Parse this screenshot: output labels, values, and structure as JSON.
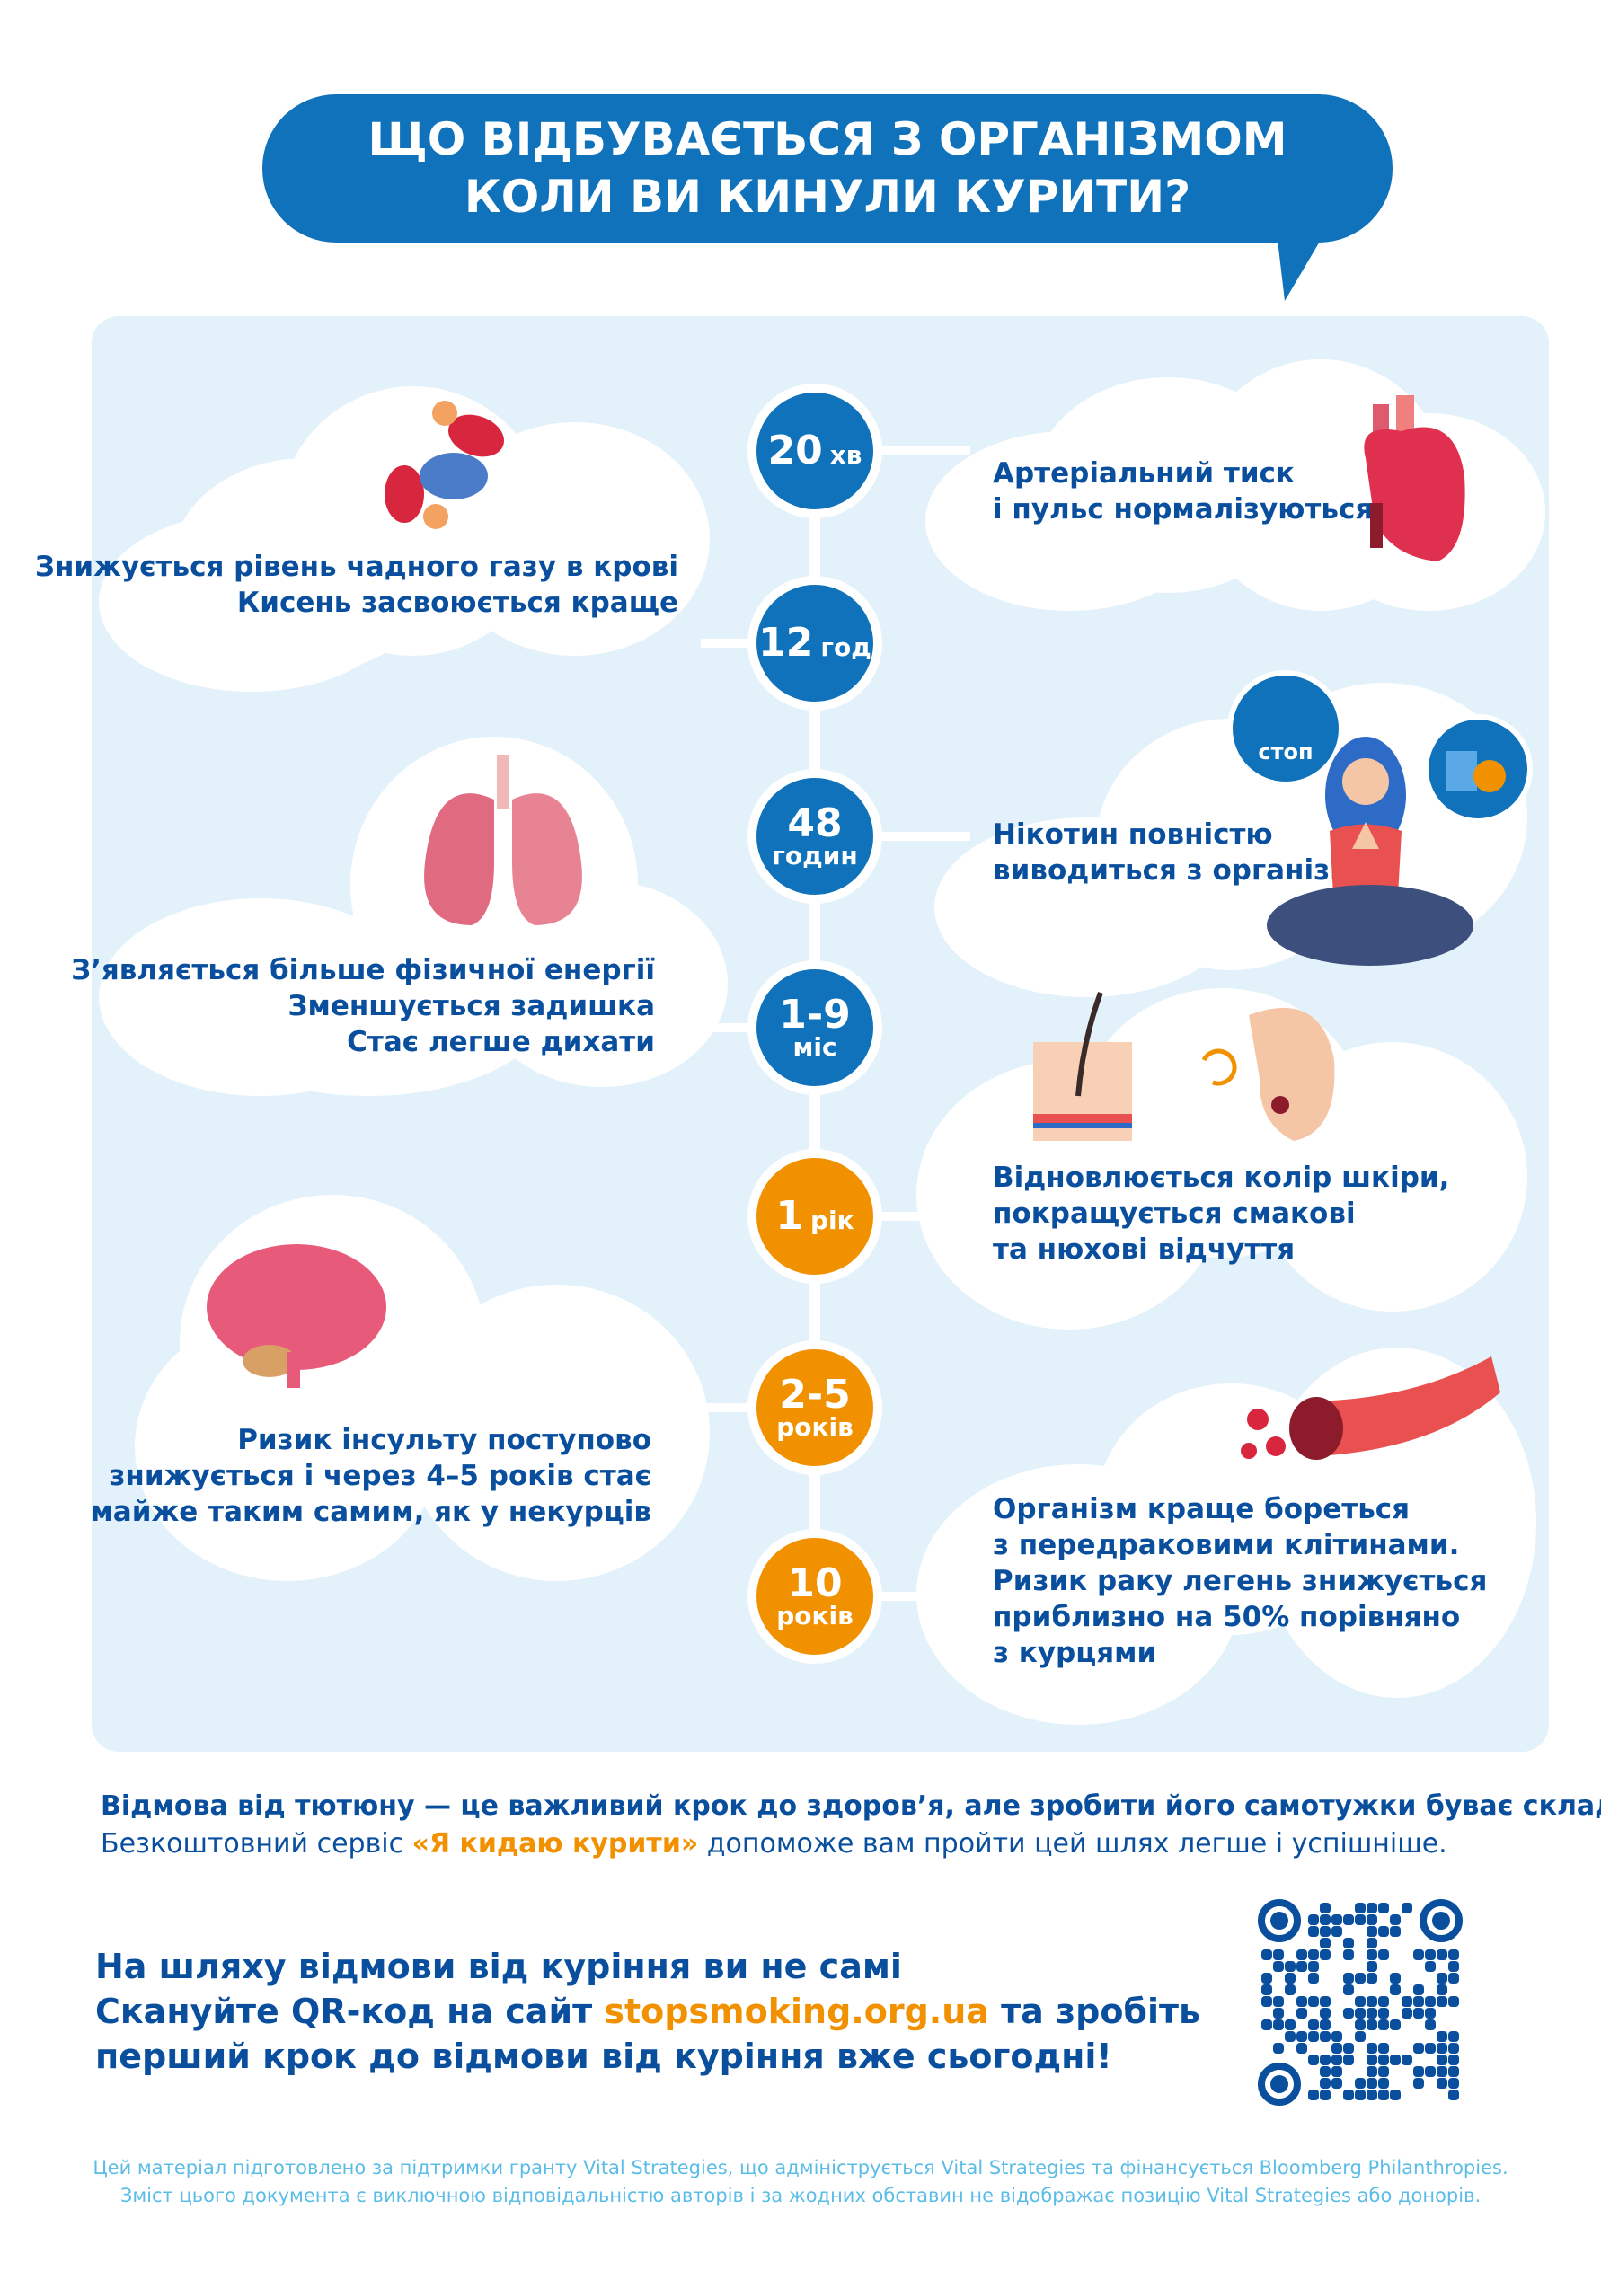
{
  "header": {
    "title_line1": "ЩО ВІДБУВАЄТЬСЯ З ОРГАНІЗМОМ",
    "title_line2": "КОЛИ ВИ КИНУЛИ КУРИТИ?"
  },
  "timeline": [
    {
      "num": "20",
      "unit": "хв",
      "color": "#0f72ba",
      "side": "right",
      "lines": [
        "Артеріальний тиск",
        "і пульс нормалізуються"
      ],
      "icon": "heart-icon"
    },
    {
      "num": "12",
      "unit": "год",
      "color": "#0f72ba",
      "side": "left",
      "lines": [
        "Знижується рівень чадного газу в крові",
        "Кисень засвоюється краще"
      ],
      "icon": "blood-cells-icon"
    },
    {
      "num": "48",
      "unit": "годин",
      "color": "#0f72ba",
      "side": "right",
      "lines": [
        "Нікотин повністю",
        "виводиться з організму"
      ],
      "icon": "meditating-woman-icon",
      "stop_label": "стоп"
    },
    {
      "num": "1-9",
      "unit": "міс",
      "color": "#0f72ba",
      "side": "left",
      "lines": [
        "З’являється більше фізичної енергії",
        "Зменшується задишка",
        "Стає легше дихати"
      ],
      "icon": "lungs-icon"
    },
    {
      "num": "1",
      "unit": "рік",
      "color": "#f29100",
      "side": "right",
      "lines": [
        "Відновлюється колір шкіри,",
        "покращується смакові",
        "та нюхові відчуття"
      ],
      "icon": "skin-nose-icon"
    },
    {
      "num": "2-5",
      "unit": "років",
      "color": "#f29100",
      "side": "left",
      "lines": [
        "Ризик інсульту поступово",
        "знижується і через 4–5 років стає",
        "майже таким самим, як у некурців"
      ],
      "icon": "brain-icon"
    },
    {
      "num": "10",
      "unit": "років",
      "color": "#f29100",
      "side": "right",
      "lines": [
        "Організм краще бореться",
        "з передраковими клітинами.",
        "Ризик раку легень знижується",
        "приблизно на 50% порівняно",
        "з курцями"
      ],
      "icon": "blood-vessel-icon"
    }
  ],
  "info": {
    "line1": "Відмова від тютюну — це важливий крок до здоров’я, але зробити його самотужки буває складно.",
    "line2_pre": "Безкоштовний сервіс ",
    "line2_service": "«Я кидаю курити»",
    "line2_post": " допоможе вам пройти цей шлях легше і успішніше."
  },
  "cta": {
    "line1": "На шляху відмови від куріння ви не самі",
    "line2_pre": "Скануйте QR-код на сайт ",
    "link": "stopsmoking.org.ua",
    "line2_post": " та зробіть",
    "line3": "перший крок до відмови від куріння вже сьогодні!"
  },
  "footer": {
    "line1": "Цей матеріал підготовлено за підтримки гранту Vital Strategies, що адмініструється Vital Strategies та фінансується Bloomberg Philanthropies.",
    "line2": "Зміст цього документа є виключною відповідальністю авторів і за жодних обставин не відображає позицію Vital Strategies або донорів."
  },
  "colors": {
    "primary": "#0f72ba",
    "text": "#0a4f9e",
    "accent": "#f29100",
    "panel": "#e3f1fa",
    "footer": "#5bbde6"
  }
}
